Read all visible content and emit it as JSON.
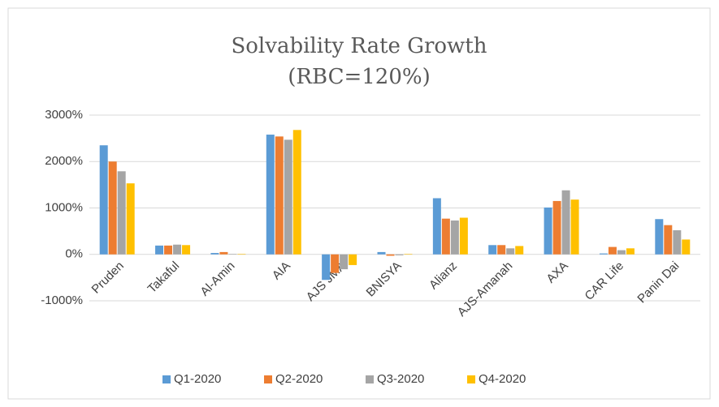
{
  "chart_data": {
    "type": "bar",
    "title": "Solvability Rate Growth",
    "subtitle": "(RBC=120%)",
    "categories": [
      "Pruden",
      "Takaful",
      "Al-Amin",
      "AIA",
      "AJS JMA",
      "BNISYA",
      "Alianz",
      "AJS-Amanah",
      "AXA",
      "CAR Life",
      "Panin Dai"
    ],
    "series": [
      {
        "name": "Q1-2020",
        "color": "#5b9bd5",
        "values": [
          2350,
          190,
          30,
          2580,
          -550,
          50,
          1210,
          200,
          1010,
          20,
          760
        ]
      },
      {
        "name": "Q2-2020",
        "color": "#ed7d31",
        "values": [
          2000,
          190,
          50,
          2540,
          -400,
          -30,
          770,
          200,
          1150,
          160,
          630
        ]
      },
      {
        "name": "Q3-2020",
        "color": "#a5a5a5",
        "values": [
          1790,
          210,
          10,
          2470,
          -320,
          -20,
          730,
          130,
          1380,
          90,
          520
        ]
      },
      {
        "name": "Q4-2020",
        "color": "#ffc000",
        "values": [
          1530,
          200,
          10,
          2680,
          -230,
          10,
          790,
          180,
          1180,
          130,
          320
        ]
      }
    ],
    "ylim": [
      -1000,
      3000
    ],
    "yticks": [
      {
        "value": -1000,
        "label": "-1000%"
      },
      {
        "value": 0,
        "label": "0%"
      },
      {
        "value": 1000,
        "label": "1000%"
      },
      {
        "value": 2000,
        "label": "2000%"
      },
      {
        "value": 3000,
        "label": "3000%"
      }
    ],
    "grid": true,
    "legend": "bottom"
  }
}
